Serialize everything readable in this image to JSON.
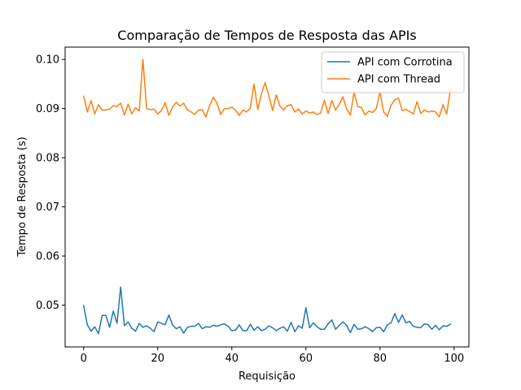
{
  "chart_data": {
    "type": "line",
    "title": "Comparação de Tempos de Resposta das APIs",
    "xlabel": "Requisição",
    "ylabel": "Tempo de Resposta (s)",
    "xlim": [
      -5,
      104
    ],
    "ylim": [
      0.0415,
      0.1025
    ],
    "xticks": [
      0,
      20,
      40,
      60,
      80,
      100
    ],
    "yticks": [
      0.05,
      0.06,
      0.07,
      0.08,
      0.09,
      0.1
    ],
    "ytick_labels": [
      "0.05",
      "0.06",
      "0.07",
      "0.08",
      "0.09",
      "0.10"
    ],
    "legend_position": "top-right",
    "grid": false,
    "series": [
      {
        "name": "API com Corrotina",
        "color": "#1f77b4",
        "x": [
          0,
          1,
          2,
          3,
          4,
          5,
          6,
          7,
          8,
          9,
          10,
          11,
          12,
          13,
          14,
          15,
          16,
          17,
          18,
          19,
          20,
          21,
          22,
          23,
          24,
          25,
          26,
          27,
          28,
          29,
          30,
          31,
          32,
          33,
          34,
          35,
          36,
          37,
          38,
          39,
          40,
          41,
          42,
          43,
          44,
          45,
          46,
          47,
          48,
          49,
          50,
          51,
          52,
          53,
          54,
          55,
          56,
          57,
          58,
          59,
          60,
          61,
          62,
          63,
          64,
          65,
          66,
          67,
          68,
          69,
          70,
          71,
          72,
          73,
          74,
          75,
          76,
          77,
          78,
          79,
          80,
          81,
          82,
          83,
          84,
          85,
          86,
          87,
          88,
          89,
          90,
          91,
          92,
          93,
          94,
          95,
          96,
          97,
          98,
          99
        ],
        "values": [
          0.0499,
          0.046,
          0.0447,
          0.0456,
          0.0442,
          0.0479,
          0.0479,
          0.0455,
          0.0488,
          0.0463,
          0.0537,
          0.0458,
          0.0466,
          0.0453,
          0.0447,
          0.0463,
          0.0455,
          0.0458,
          0.0453,
          0.0446,
          0.0466,
          0.0463,
          0.046,
          0.048,
          0.046,
          0.0452,
          0.0456,
          0.0443,
          0.0455,
          0.0457,
          0.0457,
          0.0463,
          0.0452,
          0.0456,
          0.0455,
          0.0459,
          0.0457,
          0.046,
          0.0462,
          0.0457,
          0.0448,
          0.0449,
          0.046,
          0.0448,
          0.0448,
          0.0461,
          0.0449,
          0.0456,
          0.0448,
          0.0451,
          0.0458,
          0.0454,
          0.0448,
          0.0453,
          0.0456,
          0.0447,
          0.0465,
          0.0446,
          0.0458,
          0.0453,
          0.0495,
          0.0454,
          0.0464,
          0.0456,
          0.0451,
          0.0451,
          0.0462,
          0.047,
          0.0451,
          0.0459,
          0.0466,
          0.0459,
          0.0444,
          0.0461,
          0.0451,
          0.0452,
          0.0456,
          0.0452,
          0.0446,
          0.0454,
          0.0455,
          0.0446,
          0.046,
          0.0464,
          0.0483,
          0.0465,
          0.048,
          0.0464,
          0.0467,
          0.0457,
          0.0455,
          0.0454,
          0.0462,
          0.046,
          0.0451,
          0.0459,
          0.045,
          0.0458,
          0.0457,
          0.0461
        ]
      },
      {
        "name": "API com Thread",
        "color": "#ff7f0e",
        "x": [
          0,
          1,
          2,
          3,
          4,
          5,
          6,
          7,
          8,
          9,
          10,
          11,
          12,
          13,
          14,
          15,
          16,
          17,
          18,
          19,
          20,
          21,
          22,
          23,
          24,
          25,
          26,
          27,
          28,
          29,
          30,
          31,
          32,
          33,
          34,
          35,
          36,
          37,
          38,
          39,
          40,
          41,
          42,
          43,
          44,
          45,
          46,
          47,
          48,
          49,
          50,
          51,
          52,
          53,
          54,
          55,
          56,
          57,
          58,
          59,
          60,
          61,
          62,
          63,
          64,
          65,
          66,
          67,
          68,
          69,
          70,
          71,
          72,
          73,
          74,
          75,
          76,
          77,
          78,
          79,
          80,
          81,
          82,
          83,
          84,
          85,
          86,
          87,
          88,
          89,
          90,
          91,
          92,
          93,
          94,
          95,
          96,
          97,
          98,
          99
        ],
        "values": [
          0.0925,
          0.0893,
          0.0916,
          0.0889,
          0.0908,
          0.0897,
          0.0897,
          0.0899,
          0.0906,
          0.0904,
          0.0911,
          0.0887,
          0.0909,
          0.0889,
          0.0902,
          0.0895,
          0.1,
          0.09,
          0.0898,
          0.0899,
          0.0889,
          0.0896,
          0.0912,
          0.0886,
          0.0903,
          0.0913,
          0.0905,
          0.0911,
          0.0898,
          0.0893,
          0.0888,
          0.0897,
          0.0898,
          0.0883,
          0.0906,
          0.0923,
          0.0911,
          0.0888,
          0.09,
          0.09,
          0.0903,
          0.0897,
          0.0886,
          0.0897,
          0.0893,
          0.0901,
          0.095,
          0.0898,
          0.093,
          0.0953,
          0.0926,
          0.0896,
          0.0928,
          0.0905,
          0.0897,
          0.0906,
          0.0908,
          0.0893,
          0.0899,
          0.0889,
          0.0895,
          0.0891,
          0.0893,
          0.0888,
          0.0891,
          0.0917,
          0.089,
          0.0916,
          0.0897,
          0.0908,
          0.0924,
          0.0899,
          0.0887,
          0.0933,
          0.0904,
          0.0902,
          0.0887,
          0.0895,
          0.0892,
          0.09,
          0.0934,
          0.0893,
          0.0884,
          0.0907,
          0.0918,
          0.0921,
          0.0896,
          0.0898,
          0.0894,
          0.0889,
          0.0914,
          0.089,
          0.0897,
          0.0893,
          0.0895,
          0.0893,
          0.0883,
          0.0908,
          0.0889,
          0.0938
        ]
      }
    ]
  }
}
